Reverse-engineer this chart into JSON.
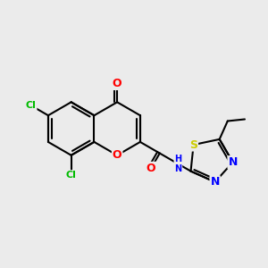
{
  "bg_color": "#ebebeb",
  "bond_color": "#000000",
  "atom_colors": {
    "O": "#ff0000",
    "N": "#0000ff",
    "S": "#cccc00",
    "Cl": "#00bb00",
    "H": "#888888"
  },
  "font_size": 8,
  "bond_width": 1.5,
  "figsize": [
    3.0,
    3.0
  ],
  "dpi": 100
}
